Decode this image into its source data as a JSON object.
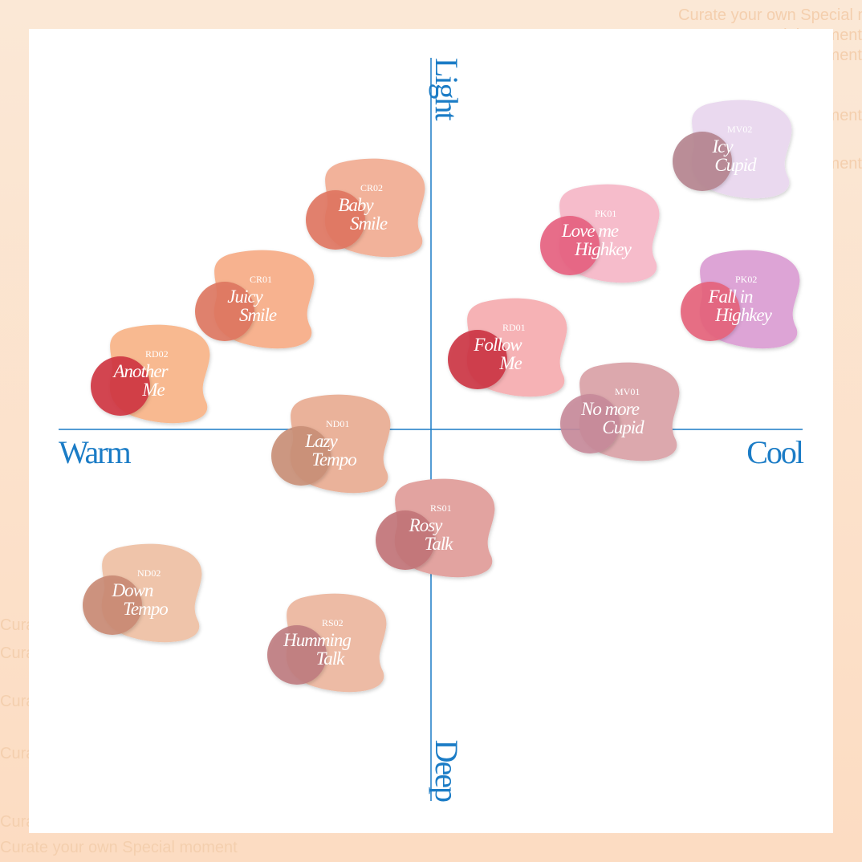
{
  "watermark": "Curate your own Special moment",
  "axes": {
    "top": "Light",
    "bottom": "Deep",
    "left": "Warm",
    "right": "Cool"
  },
  "items": [
    {
      "code": "CR02",
      "name": [
        "Baby",
        "Smile"
      ]
    },
    {
      "code": "CR01",
      "name": [
        "Juicy",
        "Smile"
      ]
    },
    {
      "code": "RD02",
      "name": [
        "Another",
        "Me"
      ]
    },
    {
      "code": "ND01",
      "name": [
        "Lazy",
        "Tempo"
      ]
    },
    {
      "code": "RD01",
      "name": [
        "Follow",
        "Me"
      ]
    },
    {
      "code": "PK01",
      "name": [
        "Love me",
        "Highkey"
      ]
    },
    {
      "code": "MV02",
      "name": [
        "Icy",
        "Cupid"
      ]
    },
    {
      "code": "PK02",
      "name": [
        "Fall in",
        "Highkey"
      ]
    },
    {
      "code": "MV01",
      "name": [
        "No more",
        "Cupid"
      ]
    },
    {
      "code": "RS01",
      "name": [
        "Rosy",
        "Talk"
      ]
    },
    {
      "code": "ND02",
      "name": [
        "Down",
        "Tempo"
      ]
    },
    {
      "code": "RS02",
      "name": [
        "Humming",
        "Talk"
      ]
    }
  ]
}
